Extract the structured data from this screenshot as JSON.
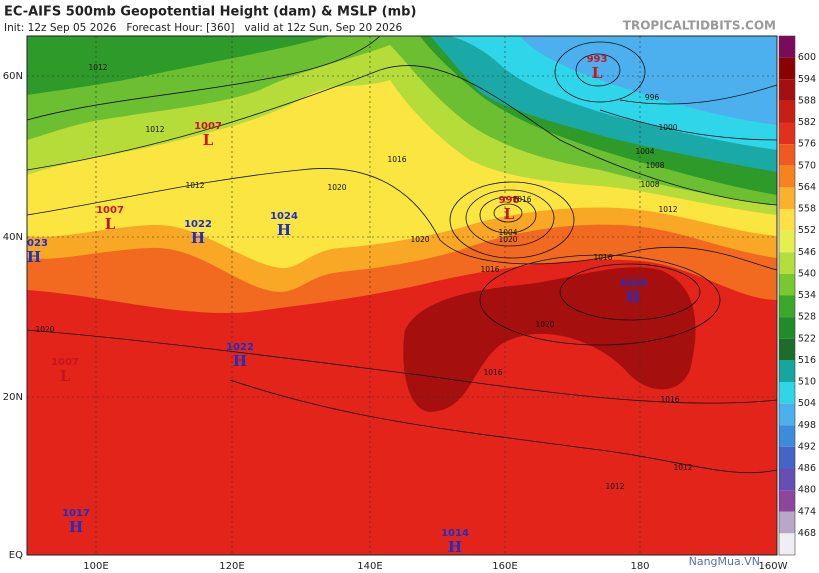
{
  "header": {
    "title": "EC-AIFS 500mb Geopotential Height (dam) & MSLP (mb)",
    "subtitle": "Init: 12z Sep 05 2026   Forecast Hour: [360]   valid at 12z Sun, Sep 20 2026",
    "source": "TROPICALTIDBITS.COM"
  },
  "map": {
    "latitude_labels": [
      "60N",
      "40N",
      "20N",
      "EQ"
    ],
    "longitude_labels": [
      "100E",
      "120E",
      "140E",
      "160E",
      "180",
      "160W"
    ],
    "pressure_centers": [
      {
        "letter": "L",
        "value": "993"
      },
      {
        "letter": "L",
        "value": "1007"
      },
      {
        "letter": "L",
        "value": "1007"
      },
      {
        "letter": "H",
        "value": "1022"
      },
      {
        "letter": "H",
        "value": "1024"
      },
      {
        "letter": "H",
        "value": "1023"
      },
      {
        "letter": "L",
        "value": "996"
      },
      {
        "letter": "H",
        "value": "1029"
      },
      {
        "letter": "H",
        "value": "1022"
      },
      {
        "letter": "L",
        "value": "1007"
      },
      {
        "letter": "H",
        "value": "1017"
      },
      {
        "letter": "H",
        "value": "1014"
      }
    ],
    "isobar_labels": [
      "1012",
      "1012",
      "1012",
      "1016",
      "1020",
      "1016",
      "1020",
      "1004",
      "1008",
      "996",
      "1000",
      "1004",
      "1008",
      "1012",
      "1016",
      "1020",
      "1016",
      "1016",
      "1020",
      "1016",
      "1012",
      "1012",
      "1020"
    ]
  },
  "colorbar": {
    "labels": [
      "600",
      "594",
      "588",
      "582",
      "576",
      "570",
      "564",
      "558",
      "552",
      "546",
      "540",
      "534",
      "528",
      "522",
      "516",
      "510",
      "504",
      "498",
      "492",
      "486",
      "480",
      "474",
      "468"
    ]
  },
  "watermark": "NangMua.VN"
}
